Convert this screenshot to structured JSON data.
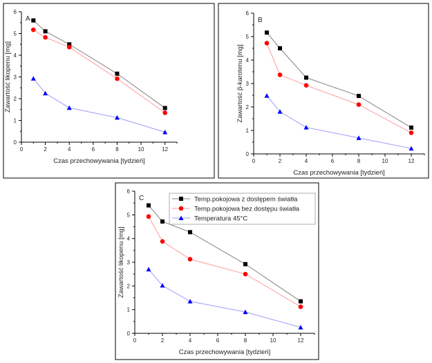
{
  "chart_data": [
    {
      "type": "line",
      "panel_label": "A",
      "xlabel": "Czas przechowywania [tydzień]",
      "ylabel": "Zawartość likopenu [mg]",
      "xlim": [
        0,
        13
      ],
      "ylim": [
        0,
        6
      ],
      "xticks": [
        0,
        2,
        4,
        6,
        8,
        10,
        12
      ],
      "yticks": [
        0,
        1,
        2,
        3,
        4,
        5,
        6
      ],
      "grid": false,
      "x": [
        1,
        2,
        4,
        8,
        12
      ],
      "series": [
        {
          "marker": "square",
          "color": "#000000",
          "line_color": "#808080",
          "values": [
            5.6,
            5.1,
            4.5,
            3.15,
            1.57
          ]
        },
        {
          "marker": "circle",
          "color": "#ff0000",
          "line_color": "#ff9a9a",
          "values": [
            5.17,
            4.82,
            4.37,
            2.92,
            1.35
          ]
        },
        {
          "marker": "triangle",
          "color": "#0000ff",
          "line_color": "#9a9aff",
          "values": [
            2.93,
            2.25,
            1.58,
            1.13,
            0.46
          ]
        }
      ]
    },
    {
      "type": "line",
      "panel_label": "B",
      "xlabel": "Czas przechowywania [tydzień]",
      "ylabel": "Zawartość β-karotenu [mg]",
      "xlim": [
        0,
        13
      ],
      "ylim": [
        0,
        6
      ],
      "xticks": [
        0,
        2,
        4,
        6,
        8,
        10,
        12
      ],
      "yticks": [
        0,
        1,
        2,
        3,
        4,
        5,
        6
      ],
      "grid": false,
      "x": [
        1,
        2,
        4,
        8,
        12
      ],
      "series": [
        {
          "marker": "square",
          "color": "#000000",
          "line_color": "#808080",
          "values": [
            5.17,
            4.5,
            3.25,
            2.47,
            1.12
          ]
        },
        {
          "marker": "circle",
          "color": "#ff0000",
          "line_color": "#ff9a9a",
          "values": [
            4.72,
            3.37,
            2.92,
            2.1,
            0.9
          ]
        },
        {
          "marker": "triangle",
          "color": "#0000ff",
          "line_color": "#9a9aff",
          "values": [
            2.48,
            1.8,
            1.13,
            0.68,
            0.23
          ]
        }
      ]
    },
    {
      "type": "line",
      "panel_label": "C",
      "xlabel": "Czas przechowywania [tydzień]",
      "ylabel": "Zawartość likopenu [mg]",
      "xlim": [
        0,
        13
      ],
      "ylim": [
        0,
        6
      ],
      "xticks": [
        0,
        2,
        4,
        6,
        8,
        10,
        12
      ],
      "yticks": [
        0,
        1,
        2,
        3,
        4,
        5,
        6
      ],
      "grid": false,
      "legend_position": "top-right",
      "x": [
        1,
        2,
        4,
        8,
        12
      ],
      "series": [
        {
          "name": "Temp.pokojowa z dostępem światła",
          "marker": "square",
          "color": "#000000",
          "line_color": "#808080",
          "values": [
            5.4,
            4.72,
            4.27,
            2.92,
            1.35
          ]
        },
        {
          "name": "Temp.pokojowa bez dostępu światła",
          "marker": "circle",
          "color": "#ff0000",
          "line_color": "#ff9a9a",
          "values": [
            4.93,
            3.88,
            3.13,
            2.5,
            1.12
          ]
        },
        {
          "name": "Temperatura 45°C",
          "marker": "triangle",
          "color": "#0000ff",
          "line_color": "#9a9aff",
          "values": [
            2.7,
            2.02,
            1.35,
            0.9,
            0.25
          ]
        }
      ]
    }
  ]
}
